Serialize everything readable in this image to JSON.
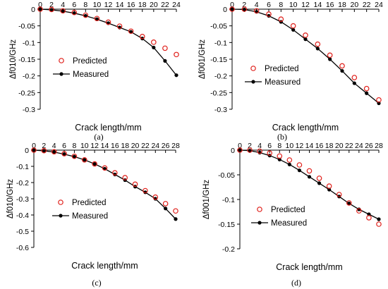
{
  "colors": {
    "predicted": "#e0201b",
    "measured": "#000000",
    "axis": "#000000",
    "background": "#ffffff"
  },
  "chart_data": [
    {
      "type": "scatter+line",
      "caption": "(a)",
      "xlabel": "Crack length/mm",
      "ylabel": "Δf010/GHz",
      "xlim": [
        0,
        24
      ],
      "ylim": [
        -0.3,
        0
      ],
      "xticks": [
        "0",
        "2",
        "4",
        "6",
        "8",
        "10",
        "12",
        "14",
        "16",
        "18",
        "20",
        "22",
        "24"
      ],
      "yticks": [
        "0",
        "-0.05",
        "-0.1",
        "-0.15",
        "-0.2",
        "-0.25",
        "-0.3"
      ],
      "legend": [
        "Predicted",
        "Measured"
      ],
      "legend_position": "lower-left",
      "series": [
        {
          "name": "Predicted",
          "style": "open-circle-markers",
          "x": [
            0,
            2,
            4,
            6,
            8,
            10,
            12,
            14,
            16,
            18,
            20,
            22,
            24
          ],
          "y": [
            0,
            -0.001,
            -0.005,
            -0.01,
            -0.018,
            -0.028,
            -0.039,
            -0.051,
            -0.066,
            -0.082,
            -0.099,
            -0.117,
            -0.136
          ]
        },
        {
          "name": "Measured",
          "style": "line-with-filled-dots",
          "x": [
            0,
            2,
            4,
            6,
            8,
            10,
            12,
            14,
            16,
            18,
            20,
            22,
            24
          ],
          "y": [
            0,
            -0.002,
            -0.006,
            -0.012,
            -0.02,
            -0.03,
            -0.042,
            -0.055,
            -0.068,
            -0.088,
            -0.115,
            -0.155,
            -0.198
          ]
        }
      ]
    },
    {
      "type": "scatter+line",
      "caption": "(b)",
      "xlabel": "Crack length/mm",
      "ylabel": "Δf001/GHz",
      "xlim": [
        0,
        24
      ],
      "ylim": [
        -0.3,
        0
      ],
      "xticks": [
        "0",
        "2",
        "4",
        "6",
        "8",
        "10",
        "12",
        "14",
        "16",
        "18",
        "20",
        "22",
        "24"
      ],
      "yticks": [
        "0",
        "-0.05",
        "-0.1",
        "-0.15",
        "-0.2",
        "-0.25",
        "-0.3"
      ],
      "legend": [
        "Predicted",
        "Measured"
      ],
      "legend_position": "lower-left",
      "series": [
        {
          "name": "Predicted",
          "style": "open-circle-markers",
          "x": [
            0,
            2,
            4,
            6,
            8,
            10,
            12,
            14,
            16,
            18,
            20,
            22,
            24
          ],
          "y": [
            0,
            0,
            -0.005,
            -0.015,
            -0.03,
            -0.05,
            -0.078,
            -0.105,
            -0.138,
            -0.17,
            -0.205,
            -0.238,
            -0.272
          ]
        },
        {
          "name": "Measured",
          "style": "line-with-filled-dots",
          "x": [
            0,
            2,
            4,
            6,
            8,
            10,
            12,
            14,
            16,
            18,
            20,
            22,
            24
          ],
          "y": [
            0,
            -0.001,
            -0.008,
            -0.02,
            -0.038,
            -0.062,
            -0.09,
            -0.118,
            -0.15,
            -0.185,
            -0.222,
            -0.252,
            -0.282
          ]
        }
      ]
    },
    {
      "type": "scatter+line",
      "caption": "(c)",
      "xlabel": "Crack length/mm",
      "ylabel": "Δf010/GHz",
      "xlim": [
        0,
        28
      ],
      "ylim": [
        -0.6,
        0
      ],
      "xticks": [
        "0",
        "2",
        "4",
        "6",
        "8",
        "10",
        "12",
        "14",
        "16",
        "18",
        "20",
        "22",
        "24",
        "26",
        "28"
      ],
      "yticks": [
        "0",
        "-0.1",
        "-0.2",
        "-0.3",
        "-0.4",
        "-0.5",
        "-0.6"
      ],
      "legend": [
        "Predicted",
        "Measured"
      ],
      "legend_position": "lower-left",
      "series": [
        {
          "name": "Predicted",
          "style": "open-circle-markers",
          "x": [
            0,
            2,
            4,
            6,
            8,
            10,
            12,
            14,
            16,
            18,
            20,
            22,
            24,
            26,
            28
          ],
          "y": [
            0,
            -0.003,
            -0.01,
            -0.022,
            -0.038,
            -0.06,
            -0.085,
            -0.11,
            -0.14,
            -0.17,
            -0.21,
            -0.25,
            -0.29,
            -0.33,
            -0.375
          ]
        },
        {
          "name": "Measured",
          "style": "line-with-filled-dots",
          "x": [
            0,
            2,
            4,
            6,
            8,
            10,
            12,
            14,
            16,
            18,
            20,
            22,
            24,
            26,
            28
          ],
          "y": [
            0,
            -0.004,
            -0.012,
            -0.025,
            -0.04,
            -0.06,
            -0.085,
            -0.115,
            -0.15,
            -0.185,
            -0.225,
            -0.26,
            -0.3,
            -0.36,
            -0.425
          ]
        }
      ]
    },
    {
      "type": "scatter+line",
      "caption": "(d)",
      "xlabel": "Crack length/mm",
      "ylabel": "Δf001/GHz",
      "xlim": [
        0,
        28
      ],
      "ylim": [
        -0.2,
        0
      ],
      "xticks": [
        "0",
        "2",
        "4",
        "6",
        "8",
        "10",
        "12",
        "14",
        "16",
        "18",
        "20",
        "22",
        "24",
        "26",
        "28"
      ],
      "yticks": [
        "0",
        "-0.05",
        "-0.1",
        "-0.15",
        "-0.2"
      ],
      "legend": [
        "Predicted",
        "Measured"
      ],
      "legend_position": "lower-left",
      "series": [
        {
          "name": "Predicted",
          "style": "open-circle-markers",
          "x": [
            0,
            2,
            4,
            6,
            8,
            10,
            12,
            14,
            16,
            18,
            20,
            22,
            24,
            26,
            28
          ],
          "y": [
            0,
            0,
            -0.002,
            -0.006,
            -0.012,
            -0.02,
            -0.03,
            -0.042,
            -0.057,
            -0.073,
            -0.09,
            -0.107,
            -0.123,
            -0.137,
            -0.15
          ]
        },
        {
          "name": "Measured",
          "style": "line-with-filled-dots",
          "x": [
            0,
            2,
            4,
            6,
            8,
            10,
            12,
            14,
            16,
            18,
            20,
            22,
            24,
            26,
            28
          ],
          "y": [
            0,
            -0.001,
            -0.005,
            -0.011,
            -0.019,
            -0.029,
            -0.041,
            -0.054,
            -0.067,
            -0.08,
            -0.094,
            -0.108,
            -0.12,
            -0.13,
            -0.14
          ]
        }
      ]
    }
  ]
}
